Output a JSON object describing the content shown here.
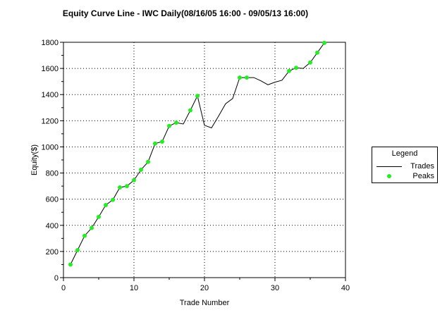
{
  "chart_data": {
    "type": "line",
    "title": "Equity Curve Line - IWC Daily(08/16/05 16:00 - 09/05/13 16:00)",
    "xlabel": "Trade Number",
    "ylabel": "Equity($)",
    "xlim": [
      0,
      40
    ],
    "ylim": [
      0,
      1800
    ],
    "xticks": [
      "0",
      "10",
      "20",
      "30",
      "40"
    ],
    "yticks": [
      "0",
      "200",
      "400",
      "600",
      "800",
      "1000",
      "1200",
      "1400",
      "1600",
      "1800"
    ],
    "grid": true,
    "legend": {
      "title": "Legend",
      "position": "right"
    },
    "series": [
      {
        "name": "Trades",
        "style": "line",
        "color": "#000000",
        "x": [
          1,
          2,
          3,
          4,
          5,
          6,
          7,
          8,
          9,
          10,
          11,
          12,
          13,
          14,
          15,
          16,
          17,
          18,
          19,
          20,
          21,
          22,
          23,
          24,
          25,
          26,
          27,
          28,
          29,
          30,
          31,
          32,
          33,
          34,
          35,
          36,
          37
        ],
        "y": [
          100,
          210,
          320,
          380,
          465,
          555,
          595,
          690,
          700,
          745,
          825,
          885,
          1025,
          1040,
          1160,
          1185,
          1175,
          1280,
          1390,
          1165,
          1145,
          1235,
          1330,
          1370,
          1530,
          1530,
          1530,
          1505,
          1475,
          1495,
          1510,
          1580,
          1605,
          1600,
          1645,
          1720,
          1795
        ]
      },
      {
        "name": "Peaks",
        "style": "markers",
        "color": "#22ee22",
        "x": [
          1,
          2,
          3,
          4,
          5,
          6,
          7,
          8,
          9,
          10,
          11,
          12,
          13,
          14,
          15,
          16,
          18,
          19,
          25,
          26,
          32,
          33,
          35,
          36,
          37
        ],
        "y": [
          100,
          210,
          320,
          380,
          465,
          555,
          595,
          690,
          700,
          745,
          825,
          885,
          1025,
          1040,
          1160,
          1185,
          1280,
          1390,
          1530,
          1530,
          1580,
          1605,
          1645,
          1720,
          1795
        ]
      }
    ]
  }
}
